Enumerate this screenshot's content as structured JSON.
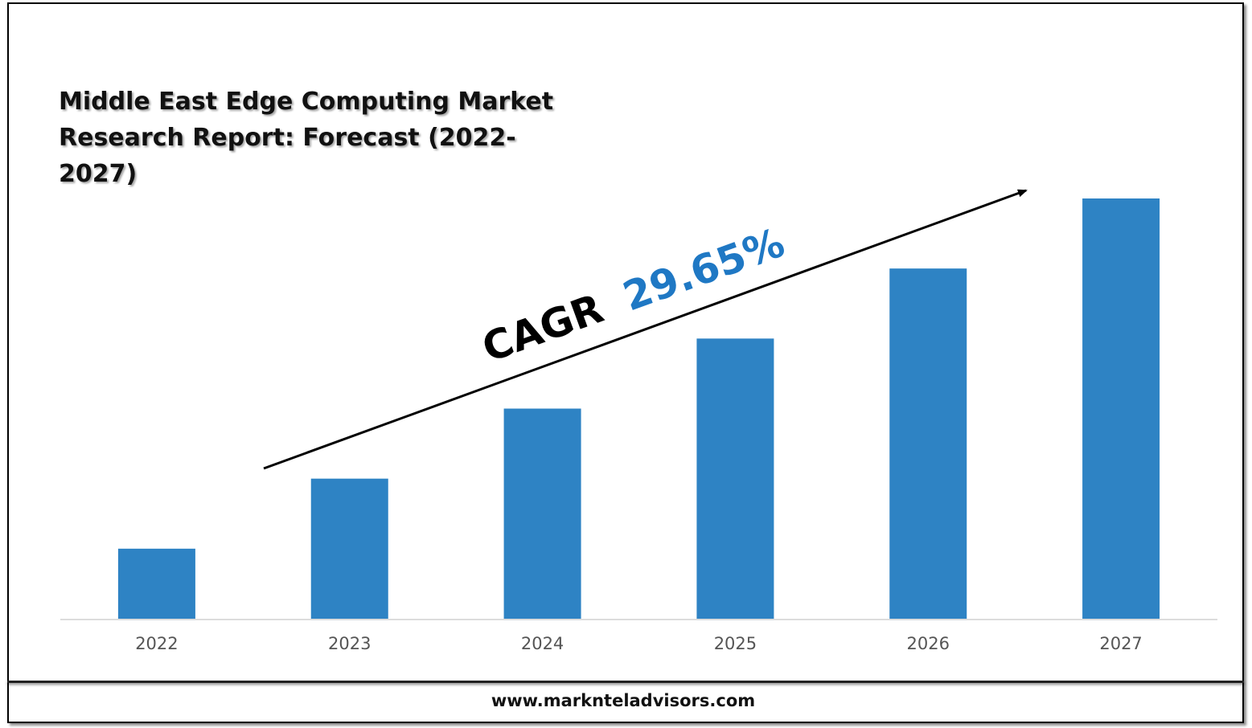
{
  "chart_data": {
    "type": "bar",
    "title": "Middle East Edge Computing Market Research Report: Forecast (2022-2027)",
    "categories": [
      "2022",
      "2023",
      "2024",
      "2025",
      "2026",
      "2027"
    ],
    "values": [
      1.0,
      2.0,
      3.0,
      4.0,
      5.0,
      6.0
    ],
    "bar_color": "#2E83C4",
    "grid": false,
    "annotation": {
      "prefix": "CAGR",
      "value": "29.65%",
      "value_color": "#1F78C4"
    }
  },
  "footer": {
    "url": "www.marknteladvisors.com"
  }
}
